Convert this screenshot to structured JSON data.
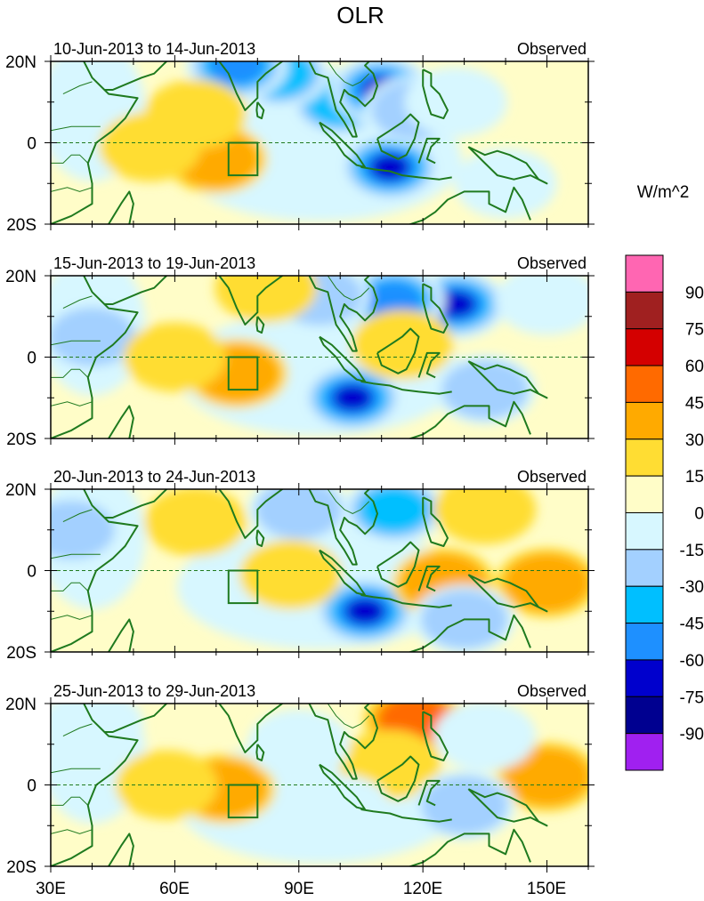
{
  "title": "OLR",
  "units_label": "W/m^2",
  "colors": {
    "land": "#1f7a1f",
    "levels": [
      "#a020f0",
      "#000090",
      "#0000cd",
      "#1e90ff",
      "#00bfff",
      "#a3d0ff",
      "#d7f7ff",
      "#fffdc8",
      "#ffdd33",
      "#ffaa00",
      "#ff6a00",
      "#d40000",
      "#a02020",
      "#ff66b2"
    ],
    "equator": "#1f7a1f"
  },
  "colorbar": {
    "labels": [
      "-90",
      "-75",
      "-60",
      "-45",
      "-30",
      "-15",
      "0",
      "15",
      "30",
      "45",
      "60",
      "75",
      "90"
    ]
  },
  "axes": {
    "lon_labels": [
      "30E",
      "60E",
      "90E",
      "120E",
      "150E"
    ],
    "lat_labels": [
      "20N",
      "0",
      "20S"
    ]
  },
  "panels": [
    {
      "date_range": "10-Jun-2013 to 14-Jun-2013",
      "tag": "Observed"
    },
    {
      "date_range": "15-Jun-2013 to 19-Jun-2013",
      "tag": "Observed"
    },
    {
      "date_range": "20-Jun-2013 to 24-Jun-2013",
      "tag": "Observed"
    },
    {
      "date_range": "25-Jun-2013 to 29-Jun-2013",
      "tag": "Observed"
    }
  ],
  "anomaly_patches": [
    [
      {
        "lon": 100,
        "lat": 10,
        "val": -45
      },
      {
        "lon": 110,
        "lat": 13,
        "val": -75
      },
      {
        "lon": 112,
        "lat": -6,
        "val": -75
      },
      {
        "lon": 118,
        "lat": 8,
        "val": -30
      },
      {
        "lon": 85,
        "lat": 17,
        "val": -45
      },
      {
        "lon": 75,
        "lat": 19,
        "val": -60
      },
      {
        "lon": 128,
        "lat": 10,
        "val": -15
      },
      {
        "lon": 70,
        "lat": -4,
        "val": 30
      },
      {
        "lon": 54,
        "lat": -1,
        "val": 15
      },
      {
        "lon": 65,
        "lat": 7,
        "val": 15
      },
      {
        "lon": 140,
        "lat": -10,
        "val": -15
      }
    ],
    [
      {
        "lon": 128,
        "lat": 13,
        "val": -75
      },
      {
        "lon": 113,
        "lat": 14,
        "val": -60
      },
      {
        "lon": 103,
        "lat": -10,
        "val": -75
      },
      {
        "lon": 95,
        "lat": 15,
        "val": -30
      },
      {
        "lon": 40,
        "lat": 5,
        "val": -30
      },
      {
        "lon": 75,
        "lat": -4,
        "val": 30
      },
      {
        "lon": 60,
        "lat": 0,
        "val": 15
      },
      {
        "lon": 115,
        "lat": 3,
        "val": 15
      },
      {
        "lon": 82,
        "lat": 17,
        "val": 15
      },
      {
        "lon": 135,
        "lat": -8,
        "val": -30
      },
      {
        "lon": 150,
        "lat": 14,
        "val": -15
      }
    ],
    [
      {
        "lon": 106,
        "lat": -10,
        "val": -75
      },
      {
        "lon": 113,
        "lat": 15,
        "val": -45
      },
      {
        "lon": 90,
        "lat": 15,
        "val": -30
      },
      {
        "lon": 135,
        "lat": 15,
        "val": 15
      },
      {
        "lon": 88,
        "lat": -1,
        "val": 15
      },
      {
        "lon": 65,
        "lat": 12,
        "val": 15
      },
      {
        "lon": 150,
        "lat": -3,
        "val": 30
      },
      {
        "lon": 125,
        "lat": -3,
        "val": 30
      },
      {
        "lon": 35,
        "lat": 10,
        "val": -30
      },
      {
        "lon": 130,
        "lat": -12,
        "val": -30
      }
    ],
    [
      {
        "lon": 118,
        "lat": 16,
        "val": 45
      },
      {
        "lon": 150,
        "lat": 2,
        "val": 30
      },
      {
        "lon": 72,
        "lat": -1,
        "val": 30
      },
      {
        "lon": 58,
        "lat": 0,
        "val": 15
      },
      {
        "lon": 112,
        "lat": 5,
        "val": 15
      },
      {
        "lon": 130,
        "lat": -5,
        "val": -30
      },
      {
        "lon": 100,
        "lat": -6,
        "val": -15
      },
      {
        "lon": 90,
        "lat": 10,
        "val": -15
      },
      {
        "lon": 135,
        "lat": 12,
        "val": -15
      },
      {
        "lon": 40,
        "lat": 15,
        "val": -15
      }
    ]
  ]
}
